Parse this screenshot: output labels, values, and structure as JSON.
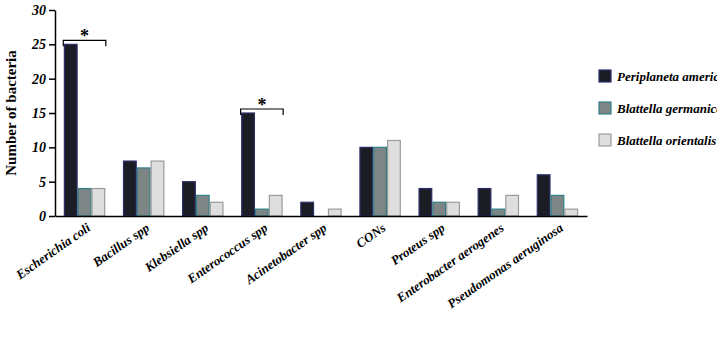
{
  "chart_data": {
    "type": "bar",
    "y_label": "Number of bacteria",
    "categories": [
      "Escherichia coli",
      "Bacillus spp",
      "Klebsiella spp",
      "Enterococcus spp",
      "Acinetobacter spp",
      "CONs",
      "Proteus spp",
      "Enterobacter aerogenes",
      "Pseudomonas aeruginosa"
    ],
    "series": [
      {
        "name": "Periplaneta americana",
        "color": "#1c1c24",
        "values": [
          25,
          8,
          5,
          15,
          2,
          10,
          4,
          4,
          6
        ]
      },
      {
        "name": "Blattella germanica",
        "color": "#7d8585",
        "values": [
          4,
          7,
          3,
          1,
          0,
          10,
          2,
          1,
          3
        ]
      },
      {
        "name": "Blattella orientalis",
        "color": "#dedede",
        "values": [
          4,
          8,
          2,
          3,
          1,
          11,
          2,
          3,
          1
        ]
      }
    ],
    "ylim": [
      0,
      30
    ],
    "yticks": [
      0,
      5,
      10,
      15,
      20,
      25,
      30
    ],
    "grid": false,
    "legend": "right",
    "annotations": [
      {
        "text": "*",
        "category": 0
      },
      {
        "text": "*",
        "category": 3
      }
    ]
  }
}
